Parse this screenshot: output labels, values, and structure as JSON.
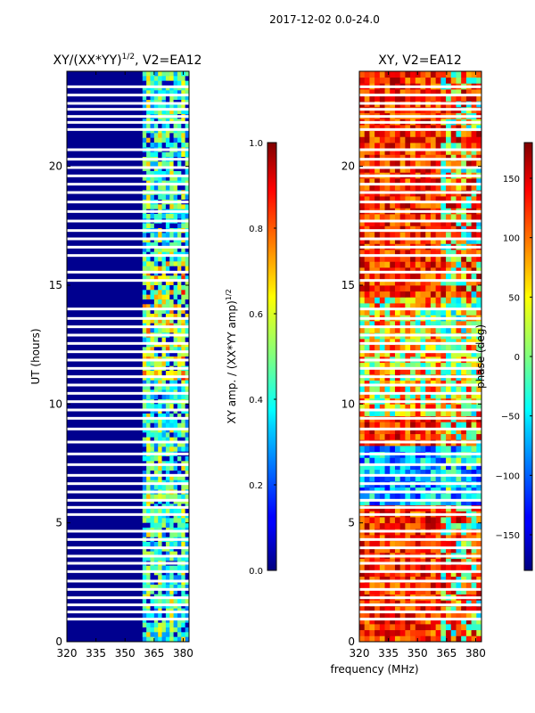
{
  "figure": {
    "suptitle": "2017-12-02 0.0-24.0",
    "common_xlabel": "frequency (MHz)"
  },
  "chart_data": [
    {
      "type": "heatmap",
      "name": "amplitude",
      "title_main": "XY/(XX*YY)",
      "title_sup": "1/2",
      "title_rest": ", V2=EA12",
      "xlabel": "",
      "ylabel": "UT (hours)",
      "xlim": [
        320,
        383
      ],
      "ylim": [
        0,
        24
      ],
      "xticks": [
        320,
        335,
        350,
        365,
        380
      ],
      "yticks": [
        0,
        5,
        10,
        15,
        20
      ],
      "active_band_mhz": [
        359,
        383
      ],
      "gap_hours": [
        0.95,
        1.25,
        1.55,
        1.85,
        2.2,
        2.55,
        2.95,
        3.3,
        3.6,
        3.95,
        4.3,
        4.65,
        5.35,
        5.65,
        5.95,
        6.3,
        6.65,
        7.0,
        7.45,
        7.9,
        8.4,
        8.95,
        9.4,
        9.75,
        10.1,
        10.45,
        10.8,
        11.15,
        11.5,
        11.85,
        12.2,
        12.55,
        12.9,
        13.25,
        13.6,
        14.0,
        15.2,
        15.55,
        16.25,
        16.6,
        16.95,
        17.3,
        17.7,
        18.1,
        18.5,
        18.9,
        19.25,
        19.6,
        19.95,
        20.3,
        20.7,
        21.55,
        21.85,
        22.1,
        22.4,
        22.65,
        23.0,
        23.35
      ]
    },
    {
      "type": "heatmap",
      "name": "phase",
      "title_main": "XY, V2=EA12",
      "xlabel": "frequency (MHz)",
      "ylabel": "",
      "xlim": [
        320,
        383
      ],
      "ylim": [
        0,
        24
      ],
      "xticks": [
        320,
        335,
        350,
        365,
        380
      ],
      "yticks": [
        0,
        5,
        10,
        15,
        20
      ],
      "gap_hours": [
        0.95,
        1.25,
        1.55,
        1.85,
        2.2,
        2.55,
        2.95,
        3.3,
        3.6,
        3.95,
        4.3,
        4.65,
        5.35,
        5.65,
        5.95,
        6.3,
        6.65,
        7.0,
        7.45,
        7.9,
        8.4,
        8.95,
        9.4,
        9.75,
        10.1,
        10.45,
        10.8,
        11.15,
        11.5,
        11.85,
        12.2,
        12.55,
        12.9,
        13.25,
        13.6,
        14.0,
        15.2,
        15.55,
        16.25,
        16.6,
        16.95,
        17.3,
        17.7,
        18.1,
        18.5,
        18.9,
        19.25,
        19.6,
        19.95,
        20.3,
        20.7,
        21.55,
        21.85,
        22.1,
        22.4,
        22.65,
        23.0,
        23.35
      ]
    }
  ],
  "colorbars": [
    {
      "name": "amplitude-colorbar",
      "label_main": "XY amp. / (XX*YY amp)",
      "label_sup": "1/2",
      "range": [
        0.0,
        1.0
      ],
      "ticks": [
        0.0,
        0.2,
        0.4,
        0.6,
        0.8,
        1.0
      ],
      "tick_labels": [
        "0.0",
        "0.2",
        "0.4",
        "0.6",
        "0.8",
        "1.0"
      ]
    },
    {
      "name": "phase-colorbar",
      "label_main": "phase (deg)",
      "range": [
        -180,
        180
      ],
      "ticks": [
        -150,
        -100,
        -50,
        0,
        50,
        100,
        150
      ],
      "tick_labels": [
        "−150",
        "−100",
        "−50",
        "0",
        "50",
        "100",
        "150"
      ]
    }
  ]
}
